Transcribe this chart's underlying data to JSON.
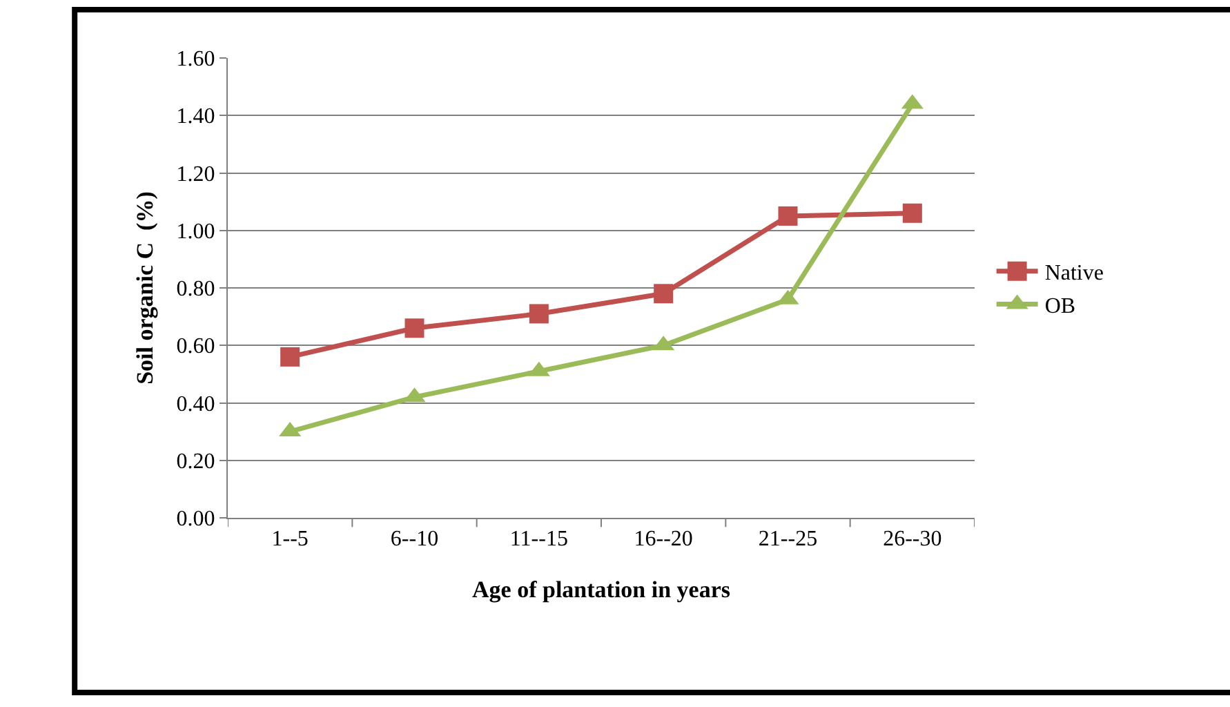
{
  "chart_data": {
    "type": "line",
    "xlabel": "Age of plantation in years",
    "ylabel": "Soil organic C  (%)",
    "categories": [
      "1--5",
      "6--10",
      "11--15",
      "16--20",
      "21--25",
      "26--30"
    ],
    "series": [
      {
        "name": "Native",
        "color": "#c0504d",
        "marker": "square",
        "values": [
          0.56,
          0.66,
          0.71,
          0.78,
          1.05,
          1.06
        ]
      },
      {
        "name": "OB",
        "color": "#9bbb59",
        "marker": "triangle",
        "values": [
          0.3,
          0.42,
          0.51,
          0.6,
          0.76,
          1.44
        ]
      }
    ],
    "ylim": [
      0,
      1.6
    ],
    "yticks": [
      {
        "value": 0,
        "label": "0.00"
      },
      {
        "value": 0.2,
        "label": "0.20"
      },
      {
        "value": 0.4,
        "label": "0.40"
      },
      {
        "value": 0.6,
        "label": "0.60"
      },
      {
        "value": 0.8,
        "label": "0.80"
      },
      {
        "value": 1.0,
        "label": "1.00"
      },
      {
        "value": 1.2,
        "label": "1.20"
      },
      {
        "value": 1.4,
        "label": "1.40"
      },
      {
        "value": 1.6,
        "label": "1.60"
      }
    ],
    "grid": "y",
    "legend": "right",
    "line_style": "solid"
  }
}
